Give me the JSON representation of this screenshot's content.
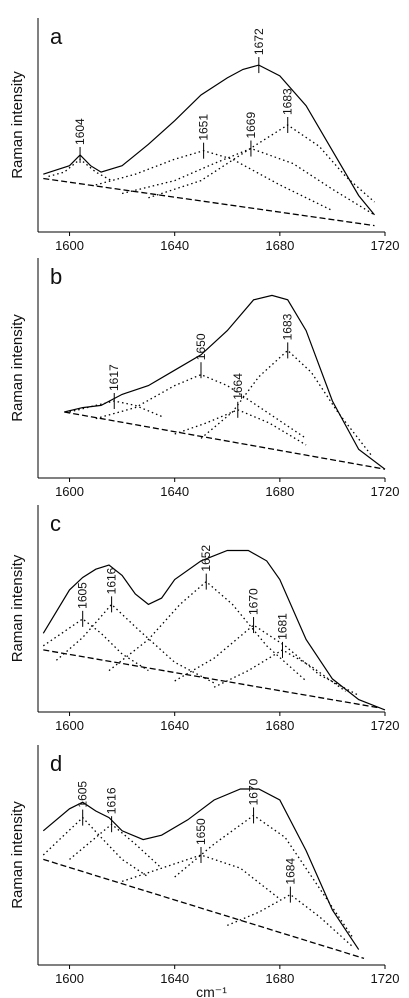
{
  "chart_data": [
    {
      "type": "line",
      "panel_label": "a",
      "ylabel": "Raman intensity",
      "xlim": [
        1588,
        1720
      ],
      "xticks": [
        1600,
        1640,
        1680,
        1720
      ],
      "ylim": [
        0,
        100
      ],
      "color": "#000000",
      "series": [
        {
          "style": "solid",
          "x": [
            1590,
            1595,
            1600,
            1604,
            1608,
            1612,
            1620,
            1630,
            1640,
            1650,
            1660,
            1666,
            1672,
            1680,
            1690,
            1700,
            1710,
            1716
          ],
          "values": [
            27,
            29,
            31,
            36,
            31,
            28,
            31,
            41,
            52,
            64,
            72,
            76,
            78,
            73,
            59,
            38,
            17,
            8
          ]
        },
        {
          "style": "dashed",
          "x": [
            1590,
            1716
          ],
          "values": [
            25,
            3
          ]
        },
        {
          "style": "dotted",
          "x": [
            1592,
            1598,
            1604,
            1610,
            1616
          ],
          "values": [
            26,
            28,
            34,
            28,
            24
          ]
        },
        {
          "style": "dotted",
          "x": [
            1610,
            1625,
            1640,
            1651,
            1662,
            1680,
            1700
          ],
          "values": [
            22,
            27,
            34,
            38,
            34,
            22,
            10
          ]
        },
        {
          "style": "dotted",
          "x": [
            1620,
            1640,
            1655,
            1669,
            1685,
            1700,
            1716
          ],
          "values": [
            18,
            24,
            32,
            39,
            32,
            20,
            8
          ]
        },
        {
          "style": "dotted",
          "x": [
            1630,
            1650,
            1670,
            1683,
            1695,
            1705,
            1716
          ],
          "values": [
            16,
            24,
            40,
            50,
            40,
            26,
            14
          ]
        }
      ],
      "annotations": [
        {
          "label": "1604",
          "x": 1604,
          "y": 36
        },
        {
          "label": "1651",
          "x": 1651,
          "y": 38
        },
        {
          "label": "1669",
          "x": 1669,
          "y": 39
        },
        {
          "label": "1672",
          "x": 1672,
          "y": 78
        },
        {
          "label": "1683",
          "x": 1683,
          "y": 50
        }
      ]
    },
    {
      "type": "line",
      "panel_label": "b",
      "ylabel": "Raman intensity",
      "xlim": [
        1588,
        1720
      ],
      "xticks": [
        1600,
        1640,
        1680,
        1720
      ],
      "ylim": [
        0,
        100
      ],
      "color": "#000000",
      "series": [
        {
          "style": "solid",
          "x": [
            1598,
            1605,
            1612,
            1620,
            1630,
            1640,
            1650,
            1660,
            1670,
            1677,
            1683,
            1690,
            1700,
            1710,
            1720
          ],
          "values": [
            30,
            32,
            33,
            38,
            42,
            49,
            56,
            67,
            81,
            83,
            81,
            67,
            35,
            13,
            4
          ]
        },
        {
          "style": "dashed",
          "x": [
            1598,
            1720
          ],
          "values": [
            30,
            4
          ]
        },
        {
          "style": "dotted",
          "x": [
            1600,
            1610,
            1617,
            1625,
            1635
          ],
          "values": [
            30,
            33,
            35,
            33,
            28
          ]
        },
        {
          "style": "dotted",
          "x": [
            1610,
            1625,
            1640,
            1650,
            1660,
            1675,
            1690
          ],
          "values": [
            27,
            32,
            42,
            47,
            42,
            30,
            18
          ]
        },
        {
          "style": "dotted",
          "x": [
            1640,
            1652,
            1664,
            1676,
            1690
          ],
          "values": [
            20,
            25,
            31,
            25,
            15
          ]
        },
        {
          "style": "dotted",
          "x": [
            1650,
            1662,
            1672,
            1683,
            1692,
            1702,
            1715
          ],
          "values": [
            18,
            30,
            46,
            58,
            48,
            30,
            10
          ]
        }
      ],
      "annotations": [
        {
          "label": "1617",
          "x": 1617,
          "y": 35
        },
        {
          "label": "1650",
          "x": 1650,
          "y": 49
        },
        {
          "label": "1664",
          "x": 1664,
          "y": 31
        },
        {
          "label": "1683",
          "x": 1683,
          "y": 58
        }
      ]
    },
    {
      "type": "line",
      "panel_label": "c",
      "ylabel": "Raman intensity",
      "xlim": [
        1588,
        1720
      ],
      "xticks": [
        1600,
        1640,
        1680,
        1720
      ],
      "ylim": [
        0,
        100
      ],
      "color": "#000000",
      "series": [
        {
          "style": "solid",
          "x": [
            1590,
            1600,
            1605,
            1610,
            1615,
            1620,
            1625,
            1630,
            1635,
            1640,
            1650,
            1660,
            1668,
            1675,
            1680,
            1690,
            1700,
            1710,
            1720
          ],
          "values": [
            38,
            59,
            65,
            69,
            71,
            66,
            57,
            52,
            55,
            64,
            73,
            78,
            78,
            73,
            64,
            35,
            16,
            6,
            1
          ]
        },
        {
          "style": "dashed",
          "x": [
            1590,
            1718
          ],
          "values": [
            30,
            2
          ]
        },
        {
          "style": "dotted",
          "x": [
            1590,
            1597,
            1605,
            1612,
            1620,
            1630
          ],
          "values": [
            32,
            38,
            45,
            38,
            28,
            20
          ]
        },
        {
          "style": "dotted",
          "x": [
            1595,
            1605,
            1616,
            1626,
            1640,
            1655
          ],
          "values": [
            25,
            36,
            52,
            40,
            24,
            14
          ]
        },
        {
          "style": "dotted",
          "x": [
            1615,
            1630,
            1642,
            1652,
            1662,
            1675,
            1690
          ],
          "values": [
            20,
            35,
            52,
            63,
            52,
            32,
            15
          ]
        },
        {
          "style": "dotted",
          "x": [
            1640,
            1655,
            1670,
            1682,
            1695,
            1710
          ],
          "values": [
            15,
            26,
            42,
            32,
            18,
            8
          ]
        },
        {
          "style": "dotted",
          "x": [
            1655,
            1668,
            1681,
            1692,
            1705
          ],
          "values": [
            12,
            20,
            30,
            22,
            10
          ]
        }
      ],
      "annotations": [
        {
          "label": "1605",
          "x": 1605,
          "y": 45
        },
        {
          "label": "1616",
          "x": 1616,
          "y": 52
        },
        {
          "label": "1652",
          "x": 1652,
          "y": 63
        },
        {
          "label": "1670",
          "x": 1670,
          "y": 42
        },
        {
          "label": "1681",
          "x": 1681,
          "y": 30
        }
      ]
    },
    {
      "type": "line",
      "panel_label": "d",
      "ylabel": "Raman intensity",
      "xlabel": "cm⁻¹",
      "xlim": [
        1588,
        1720
      ],
      "xticks": [
        1600,
        1640,
        1680,
        1720
      ],
      "ylim": [
        0,
        100
      ],
      "color": "#000000",
      "series": [
        {
          "style": "solid",
          "x": [
            1590,
            1600,
            1605,
            1610,
            1615,
            1620,
            1628,
            1635,
            1645,
            1655,
            1665,
            1672,
            1680,
            1690,
            1700,
            1710
          ],
          "values": [
            61,
            71,
            74,
            70,
            67,
            61,
            57,
            59,
            66,
            75,
            80,
            80,
            75,
            52,
            25,
            7
          ]
        },
        {
          "style": "dashed",
          "x": [
            1590,
            1712
          ],
          "values": [
            48,
            3
          ]
        },
        {
          "style": "dotted",
          "x": [
            1590,
            1597,
            1605,
            1612,
            1620,
            1630
          ],
          "values": [
            50,
            58,
            67,
            58,
            48,
            40
          ]
        },
        {
          "style": "dotted",
          "x": [
            1600,
            1608,
            1616,
            1625,
            1635
          ],
          "values": [
            48,
            56,
            64,
            55,
            44
          ]
        },
        {
          "style": "dotted",
          "x": [
            1620,
            1635,
            1650,
            1665,
            1680
          ],
          "values": [
            38,
            44,
            50,
            44,
            30
          ]
        },
        {
          "style": "dotted",
          "x": [
            1640,
            1655,
            1670,
            1682,
            1695,
            1708
          ],
          "values": [
            40,
            55,
            68,
            58,
            35,
            12
          ]
        },
        {
          "style": "dotted",
          "x": [
            1660,
            1672,
            1684,
            1695,
            1708
          ],
          "values": [
            18,
            24,
            32,
            22,
            8
          ]
        }
      ],
      "annotations": [
        {
          "label": "1605",
          "x": 1605,
          "y": 67
        },
        {
          "label": "1616",
          "x": 1616,
          "y": 64
        },
        {
          "label": "1650",
          "x": 1650,
          "y": 50
        },
        {
          "label": "1670",
          "x": 1670,
          "y": 68
        },
        {
          "label": "1684",
          "x": 1684,
          "y": 32
        }
      ]
    }
  ]
}
